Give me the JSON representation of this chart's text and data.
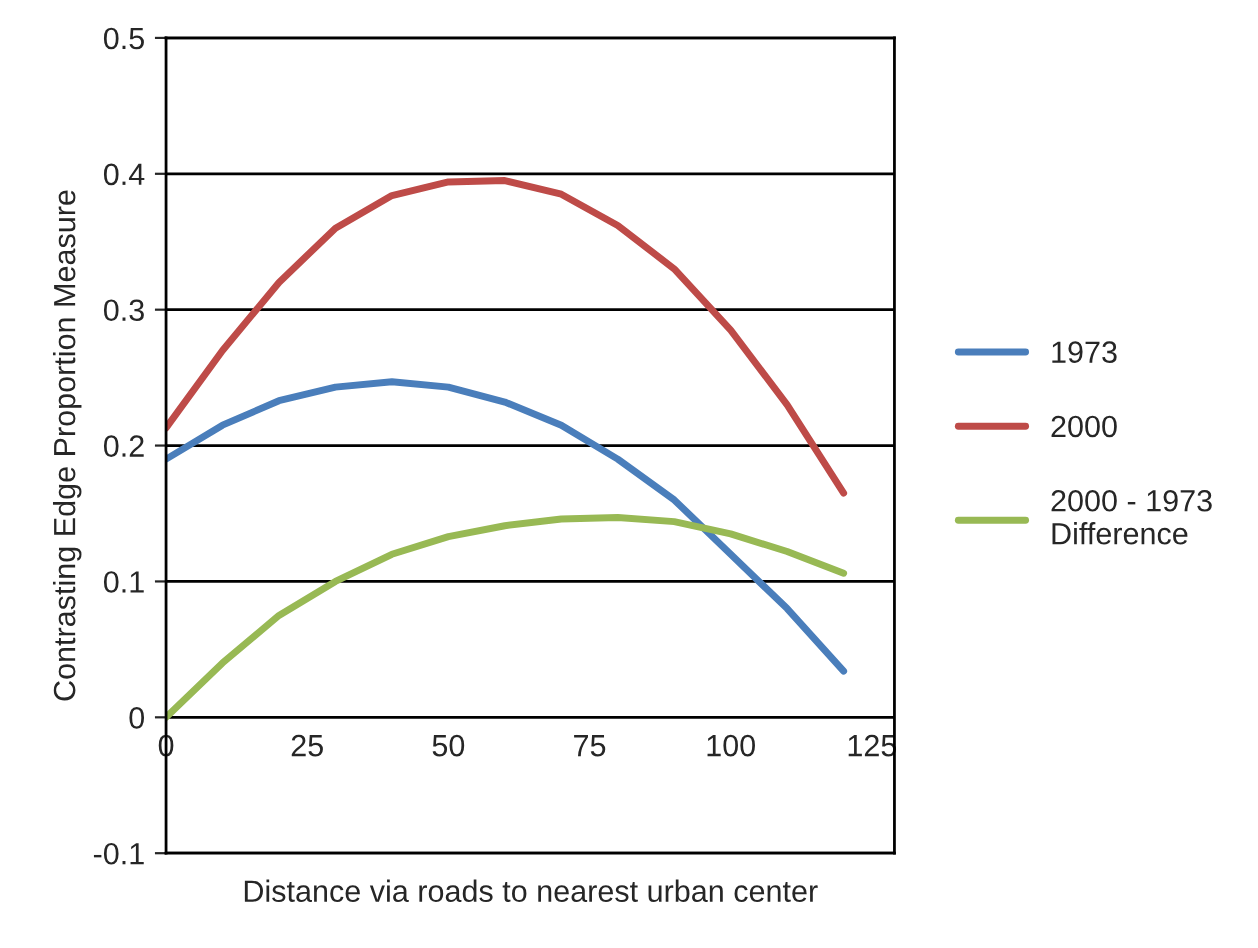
{
  "chart_data": {
    "type": "line",
    "xlabel": "Distance via roads to nearest urban center",
    "ylabel": "Contrasting Edge Proportion Measure",
    "xlim": [
      0,
      129
    ],
    "xticks": [
      0,
      25,
      50,
      75,
      100,
      125
    ],
    "ylim": [
      -0.1,
      0.5
    ],
    "yticks": [
      -0.1,
      0,
      0.1,
      0.2,
      0.3,
      0.4,
      0.5
    ],
    "grid": "y",
    "legend": "right",
    "marker": "none",
    "line_style": "solid",
    "x": [
      0,
      10,
      20,
      30,
      40,
      50,
      60,
      70,
      80,
      90,
      100,
      110,
      120
    ],
    "series": [
      {
        "name": "1973",
        "color": "#4a7ebb",
        "values": [
          0.19,
          0.215,
          0.233,
          0.243,
          0.247,
          0.243,
          0.232,
          0.215,
          0.19,
          0.16,
          0.12,
          0.08,
          0.034
        ]
      },
      {
        "name": "2000",
        "color": "#be4b48",
        "values": [
          0.213,
          0.27,
          0.32,
          0.36,
          0.384,
          0.394,
          0.395,
          0.385,
          0.362,
          0.33,
          0.285,
          0.23,
          0.165
        ]
      },
      {
        "name": "2000 - 1973 Difference",
        "color": "#98b954",
        "values": [
          0.0,
          0.04,
          0.075,
          0.1,
          0.12,
          0.133,
          0.141,
          0.146,
          0.147,
          0.144,
          0.135,
          0.122,
          0.106
        ]
      }
    ]
  }
}
